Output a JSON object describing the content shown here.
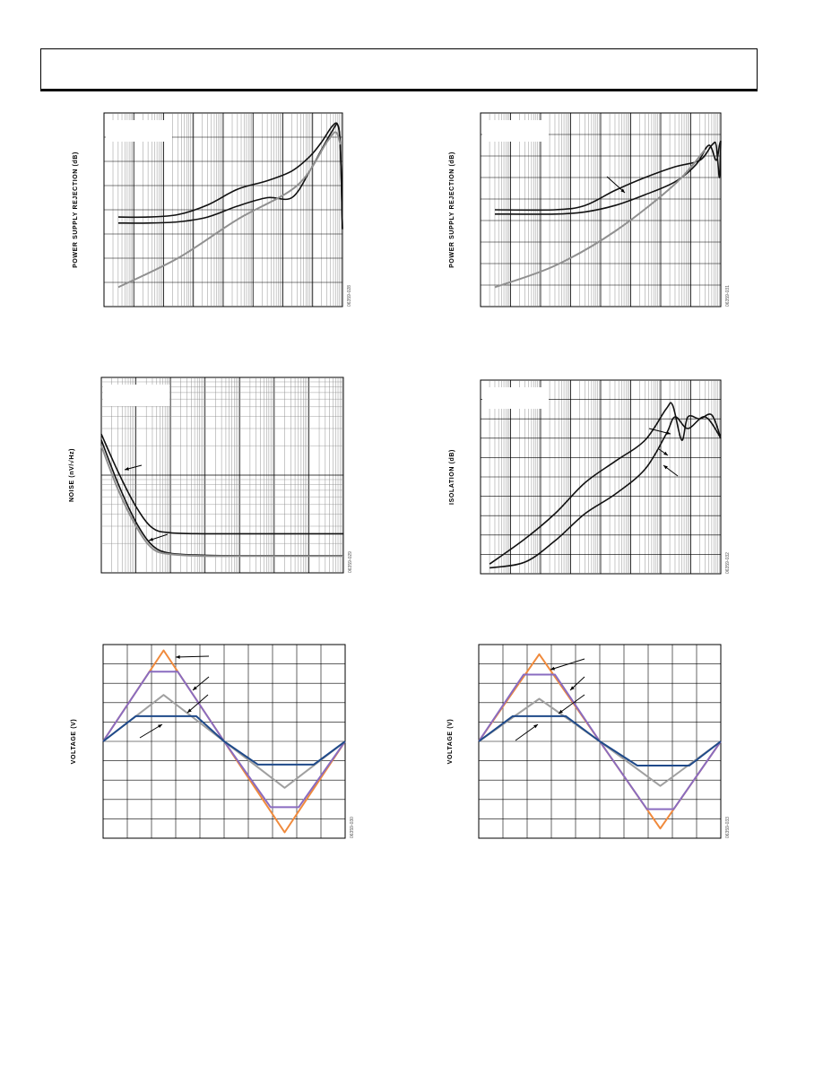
{
  "header": {
    "title": ""
  },
  "colors": {
    "black": "#111111",
    "gray": "#909090",
    "orange": "#f08a3c",
    "purple": "#8a6cc0",
    "blue": "#1f4a8a",
    "lightgray": "#a0a0a0"
  },
  "chart_data": [
    {
      "id": "psr-left",
      "type": "line",
      "ylabel": "POWER SUPPLY REJECTION (dB)",
      "figure_code": "06359-028",
      "x_scale": "log",
      "xlim": [
        1,
        100000000
      ],
      "ylim": [
        -8,
        0
      ],
      "grid": true,
      "series": [
        {
          "color": "black",
          "points": [
            [
              3,
              -4.3
            ],
            [
              30,
              -4.3
            ],
            [
              300,
              -4.2
            ],
            [
              3000,
              -3.8
            ],
            [
              30000,
              -3.15
            ],
            [
              300000,
              -2.8
            ],
            [
              2000000,
              -2.4
            ],
            [
              8000000,
              -1.8
            ],
            [
              20000000,
              -1.2
            ],
            [
              45000000,
              -0.55
            ],
            [
              70000000,
              -0.5
            ],
            [
              85000000,
              -1.5
            ],
            [
              100000000,
              -4.8
            ]
          ]
        },
        {
          "color": "black",
          "points": [
            [
              3,
              -4.55
            ],
            [
              30,
              -4.55
            ],
            [
              300,
              -4.5
            ],
            [
              3000,
              -4.3
            ],
            [
              30000,
              -3.85
            ],
            [
              300000,
              -3.5
            ],
            [
              2000000,
              -3.5
            ],
            [
              8000000,
              -2.4
            ],
            [
              20000000,
              -1.5
            ],
            [
              45000000,
              -0.75
            ],
            [
              70000000,
              -0.5
            ],
            [
              85000000,
              -1.5
            ],
            [
              100000000,
              -4.8
            ]
          ]
        },
        {
          "color": "gray",
          "points": [
            [
              3,
              -7.2
            ],
            [
              300,
              -6.0
            ],
            [
              30000,
              -4.4
            ],
            [
              3000000,
              -3.0
            ],
            [
              30000000,
              -1.2
            ],
            [
              60000000,
              -0.8
            ],
            [
              85000000,
              -1.3
            ]
          ]
        }
      ]
    },
    {
      "id": "psr-right",
      "type": "line",
      "ylabel": "POWER SUPPLY REJECTION (dB)",
      "figure_code": "06359-031",
      "x_scale": "log",
      "xlim": [
        1,
        100000000
      ],
      "ylim": [
        -9,
        0
      ],
      "grid": true,
      "series": [
        {
          "color": "black",
          "points": [
            [
              3,
              -4.5
            ],
            [
              300,
              -4.5
            ],
            [
              3000,
              -4.3
            ],
            [
              30000,
              -3.6
            ],
            [
              300000,
              -3.0
            ],
            [
              3000000,
              -2.5
            ],
            [
              20000000,
              -2.2
            ],
            [
              50000000,
              -1.5
            ],
            [
              70000000,
              -1.5
            ],
            [
              90000000,
              -3.0
            ],
            [
              100000000,
              -1.3
            ]
          ]
        },
        {
          "color": "black",
          "points": [
            [
              3,
              -4.7
            ],
            [
              300,
              -4.7
            ],
            [
              3000,
              -4.6
            ],
            [
              30000,
              -4.3
            ],
            [
              300000,
              -3.8
            ],
            [
              3000000,
              -3.2
            ],
            [
              15000000,
              -2.4
            ],
            [
              40000000,
              -1.5
            ],
            [
              70000000,
              -2.2
            ],
            [
              90000000,
              -1.5
            ],
            [
              100000000,
              -1.3
            ]
          ]
        },
        {
          "color": "gray",
          "points": [
            [
              3,
              -8.1
            ],
            [
              300,
              -7.1
            ],
            [
              30000,
              -5.5
            ],
            [
              3000000,
              -3.3
            ],
            [
              30000000,
              -1.7
            ]
          ]
        }
      ]
    },
    {
      "id": "noise",
      "type": "line",
      "ylabel": "NOISE (nV/√Hz)",
      "figure_code": "06359-029",
      "x_scale": "log",
      "xlim": [
        1,
        10000000
      ],
      "ylim": [
        0,
        10
      ],
      "grid": true,
      "series": [
        {
          "color": "black",
          "points": [
            [
              1,
              7.1
            ],
            [
              3,
              5.2
            ],
            [
              10,
              3.4
            ],
            [
              30,
              2.3
            ],
            [
              100,
              2.05
            ],
            [
              1000,
              2.0
            ],
            [
              10000,
              2.0
            ],
            [
              10000000,
              2.0
            ]
          ]
        },
        {
          "color": "black",
          "points": [
            [
              1,
              6.8
            ],
            [
              3,
              4.6
            ],
            [
              10,
              2.6
            ],
            [
              30,
              1.4
            ],
            [
              100,
              1.0
            ],
            [
              1000,
              0.9
            ],
            [
              10000,
              0.88
            ],
            [
              10000000,
              0.88
            ]
          ]
        },
        {
          "color": "gray",
          "points": [
            [
              1,
              6.5
            ],
            [
              3,
              4.3
            ],
            [
              10,
              2.4
            ],
            [
              30,
              1.25
            ],
            [
              100,
              0.95
            ],
            [
              1000,
              0.86
            ],
            [
              10000,
              0.86
            ],
            [
              10000000,
              0.86
            ]
          ]
        }
      ]
    },
    {
      "id": "isolation",
      "type": "line",
      "ylabel": "ISOLATION (dB)",
      "figure_code": "06359-032",
      "x_scale": "log",
      "xlim": [
        1,
        100000000
      ],
      "ylim": [
        -10,
        0
      ],
      "grid": true,
      "series": [
        {
          "color": "black",
          "points": [
            [
              2,
              -9.5
            ],
            [
              30,
              -8.2
            ],
            [
              300,
              -6.9
            ],
            [
              3000,
              -5.3
            ],
            [
              30000,
              -4.2
            ],
            [
              300000,
              -3.1
            ],
            [
              1500000,
              -1.5
            ],
            [
              2500000,
              -1.3
            ],
            [
              5000000,
              -3.1
            ],
            [
              8000000,
              -1.9
            ],
            [
              20000000,
              -2.0
            ],
            [
              50000000,
              -1.8
            ],
            [
              100000000,
              -3.0
            ]
          ]
        },
        {
          "color": "black",
          "points": [
            [
              2,
              -9.7
            ],
            [
              30,
              -9.4
            ],
            [
              300,
              -8.3
            ],
            [
              3000,
              -6.9
            ],
            [
              30000,
              -5.9
            ],
            [
              300000,
              -4.6
            ],
            [
              1500000,
              -2.8
            ],
            [
              3000000,
              -1.9
            ],
            [
              8000000,
              -2.5
            ],
            [
              30000000,
              -1.9
            ],
            [
              100000000,
              -3.0
            ]
          ]
        }
      ]
    },
    {
      "id": "voltage-left",
      "type": "line",
      "ylabel": "VOLTAGE (V)",
      "figure_code": "06359-030",
      "xlim": [
        0,
        10
      ],
      "ylim": [
        -5,
        5
      ],
      "grid": true,
      "series": [
        {
          "color": "orange",
          "points": [
            [
              0,
              0
            ],
            [
              2.5,
              4.7
            ],
            [
              5,
              0
            ],
            [
              7.5,
              -4.7
            ],
            [
              10,
              0
            ]
          ]
        },
        {
          "color": "purple",
          "points": [
            [
              0,
              0
            ],
            [
              1.92,
              3.6
            ],
            [
              3.08,
              3.6
            ],
            [
              5,
              0
            ],
            [
              6.92,
              -3.4
            ],
            [
              8.08,
              -3.4
            ],
            [
              10,
              0
            ]
          ]
        },
        {
          "color": "lightgray",
          "points": [
            [
              0,
              0
            ],
            [
              2.5,
              2.4
            ],
            [
              5,
              0
            ],
            [
              7.5,
              -2.4
            ],
            [
              10,
              0
            ]
          ]
        },
        {
          "color": "blue",
          "points": [
            [
              0,
              0
            ],
            [
              1.35,
              1.3
            ],
            [
              3.85,
              1.3
            ],
            [
              5,
              0
            ],
            [
              6.4,
              -1.2
            ],
            [
              8.7,
              -1.2
            ],
            [
              10,
              0
            ]
          ]
        }
      ]
    },
    {
      "id": "voltage-right",
      "type": "line",
      "ylabel": "VOLTAGE (V)",
      "figure_code": "06359-033",
      "xlim": [
        0,
        10
      ],
      "ylim": [
        -5,
        5
      ],
      "grid": true,
      "series": [
        {
          "color": "orange",
          "points": [
            [
              0,
              0
            ],
            [
              2.5,
              4.5
            ],
            [
              5,
              0
            ],
            [
              7.5,
              -4.5
            ],
            [
              10,
              0
            ]
          ]
        },
        {
          "color": "purple",
          "points": [
            [
              0,
              0
            ],
            [
              1.85,
              3.45
            ],
            [
              3.15,
              3.45
            ],
            [
              5,
              0
            ],
            [
              6.95,
              -3.5
            ],
            [
              8.05,
              -3.5
            ],
            [
              10,
              0
            ]
          ]
        },
        {
          "color": "lightgray",
          "points": [
            [
              0,
              0
            ],
            [
              2.5,
              2.2
            ],
            [
              5,
              0
            ],
            [
              7.5,
              -2.3
            ],
            [
              10,
              0
            ]
          ]
        },
        {
          "color": "blue",
          "points": [
            [
              0,
              0
            ],
            [
              1.4,
              1.3
            ],
            [
              3.6,
              1.3
            ],
            [
              5,
              0
            ],
            [
              6.55,
              -1.25
            ],
            [
              8.7,
              -1.25
            ],
            [
              10,
              0
            ]
          ]
        }
      ]
    }
  ]
}
